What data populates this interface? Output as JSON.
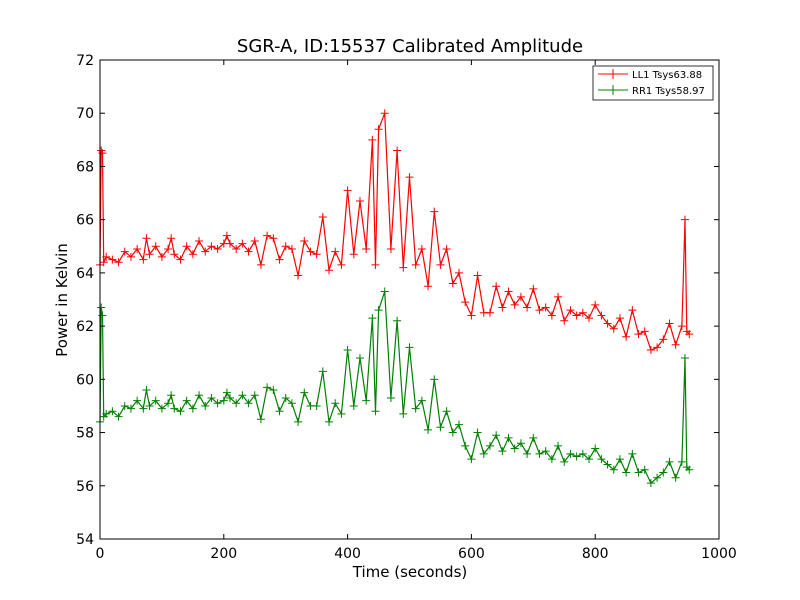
{
  "chart_data": {
    "type": "line",
    "title": "SGR-A, ID:15537 Calibrated Amplitude",
    "xlabel": "Time (seconds)",
    "ylabel": "Power in Kelvin",
    "xlim": [
      0,
      1000
    ],
    "ylim": [
      54,
      72
    ],
    "xticks": [
      0,
      200,
      400,
      600,
      800,
      1000
    ],
    "yticks": [
      54,
      56,
      58,
      60,
      62,
      64,
      66,
      68,
      70,
      72
    ],
    "grid": false,
    "legend_position": "top-right",
    "marker": "+",
    "series": [
      {
        "name": "LL1 Tsys63.88",
        "color": "#ff0000",
        "x": [
          0,
          2,
          4,
          6,
          10,
          20,
          30,
          40,
          50,
          60,
          70,
          75,
          80,
          90,
          100,
          110,
          115,
          120,
          130,
          140,
          150,
          160,
          170,
          180,
          190,
          200,
          205,
          210,
          220,
          230,
          240,
          250,
          260,
          270,
          280,
          290,
          300,
          310,
          320,
          330,
          340,
          350,
          360,
          370,
          380,
          390,
          400,
          410,
          420,
          430,
          440,
          445,
          450,
          460,
          470,
          480,
          490,
          500,
          510,
          520,
          530,
          540,
          550,
          560,
          570,
          580,
          590,
          600,
          610,
          620,
          630,
          640,
          650,
          660,
          670,
          680,
          690,
          700,
          710,
          720,
          730,
          740,
          750,
          760,
          770,
          780,
          790,
          800,
          810,
          820,
          830,
          840,
          850,
          860,
          870,
          880,
          890,
          900,
          910,
          920,
          930,
          940,
          945,
          948,
          952
        ],
        "y": [
          64.3,
          68.6,
          68.5,
          64.4,
          64.6,
          64.5,
          64.4,
          64.8,
          64.6,
          64.9,
          64.5,
          65.3,
          64.7,
          65.0,
          64.6,
          64.9,
          65.3,
          64.7,
          64.5,
          65.0,
          64.7,
          65.2,
          64.8,
          65.0,
          64.9,
          65.1,
          65.4,
          65.1,
          64.9,
          65.1,
          64.8,
          65.2,
          64.3,
          65.4,
          65.3,
          64.5,
          65.0,
          64.9,
          63.9,
          65.2,
          64.8,
          64.7,
          66.1,
          64.1,
          64.8,
          64.3,
          67.1,
          64.7,
          66.7,
          64.9,
          69.0,
          64.3,
          69.4,
          70.0,
          64.9,
          68.6,
          64.2,
          67.6,
          64.3,
          64.9,
          63.5,
          66.3,
          64.3,
          64.9,
          63.6,
          64.0,
          62.9,
          62.4,
          63.9,
          62.5,
          62.5,
          63.5,
          62.7,
          63.3,
          62.8,
          63.1,
          62.7,
          63.4,
          62.6,
          62.7,
          62.4,
          63.1,
          62.2,
          62.6,
          62.4,
          62.5,
          62.3,
          62.8,
          62.4,
          62.1,
          61.9,
          62.3,
          61.6,
          62.6,
          61.7,
          61.8,
          61.1,
          61.2,
          61.5,
          62.1,
          61.3,
          62.0,
          66.0,
          61.8,
          61.7
        ]
      },
      {
        "name": "RR1 Tsys58.97",
        "color": "#008000",
        "x": [
          0,
          2,
          4,
          6,
          10,
          20,
          30,
          40,
          50,
          60,
          70,
          75,
          80,
          90,
          100,
          110,
          115,
          120,
          130,
          140,
          150,
          160,
          170,
          180,
          190,
          200,
          205,
          210,
          220,
          230,
          240,
          250,
          260,
          270,
          280,
          290,
          300,
          310,
          320,
          330,
          340,
          350,
          360,
          370,
          380,
          390,
          400,
          410,
          420,
          430,
          440,
          445,
          450,
          460,
          470,
          480,
          490,
          500,
          510,
          520,
          530,
          540,
          550,
          560,
          570,
          580,
          590,
          600,
          610,
          620,
          630,
          640,
          650,
          660,
          670,
          680,
          690,
          700,
          710,
          720,
          730,
          740,
          750,
          760,
          770,
          780,
          790,
          800,
          810,
          820,
          830,
          840,
          850,
          860,
          870,
          880,
          890,
          900,
          910,
          920,
          930,
          940,
          945,
          948,
          952
        ],
        "y": [
          58.4,
          62.7,
          62.4,
          58.6,
          58.7,
          58.8,
          58.6,
          59.0,
          58.9,
          59.2,
          58.9,
          59.6,
          59.0,
          59.2,
          58.9,
          59.1,
          59.4,
          58.9,
          58.8,
          59.2,
          58.9,
          59.4,
          59.0,
          59.3,
          59.1,
          59.2,
          59.5,
          59.3,
          59.1,
          59.4,
          59.1,
          59.4,
          58.5,
          59.7,
          59.6,
          58.8,
          59.3,
          59.1,
          58.4,
          59.5,
          59.0,
          59.0,
          60.3,
          58.4,
          59.1,
          58.7,
          61.1,
          59.0,
          60.8,
          59.2,
          62.3,
          58.8,
          62.6,
          63.3,
          59.3,
          62.2,
          58.7,
          61.2,
          58.9,
          59.2,
          58.1,
          60.0,
          58.2,
          58.8,
          58.0,
          58.3,
          57.5,
          57.0,
          58.0,
          57.2,
          57.5,
          57.9,
          57.3,
          57.8,
          57.4,
          57.6,
          57.2,
          57.8,
          57.2,
          57.3,
          57.0,
          57.5,
          56.9,
          57.2,
          57.1,
          57.2,
          57.0,
          57.4,
          57.0,
          56.8,
          56.6,
          57.0,
          56.5,
          57.2,
          56.5,
          56.6,
          56.1,
          56.3,
          56.5,
          56.9,
          56.3,
          56.9,
          60.8,
          56.7,
          56.6
        ]
      }
    ]
  }
}
